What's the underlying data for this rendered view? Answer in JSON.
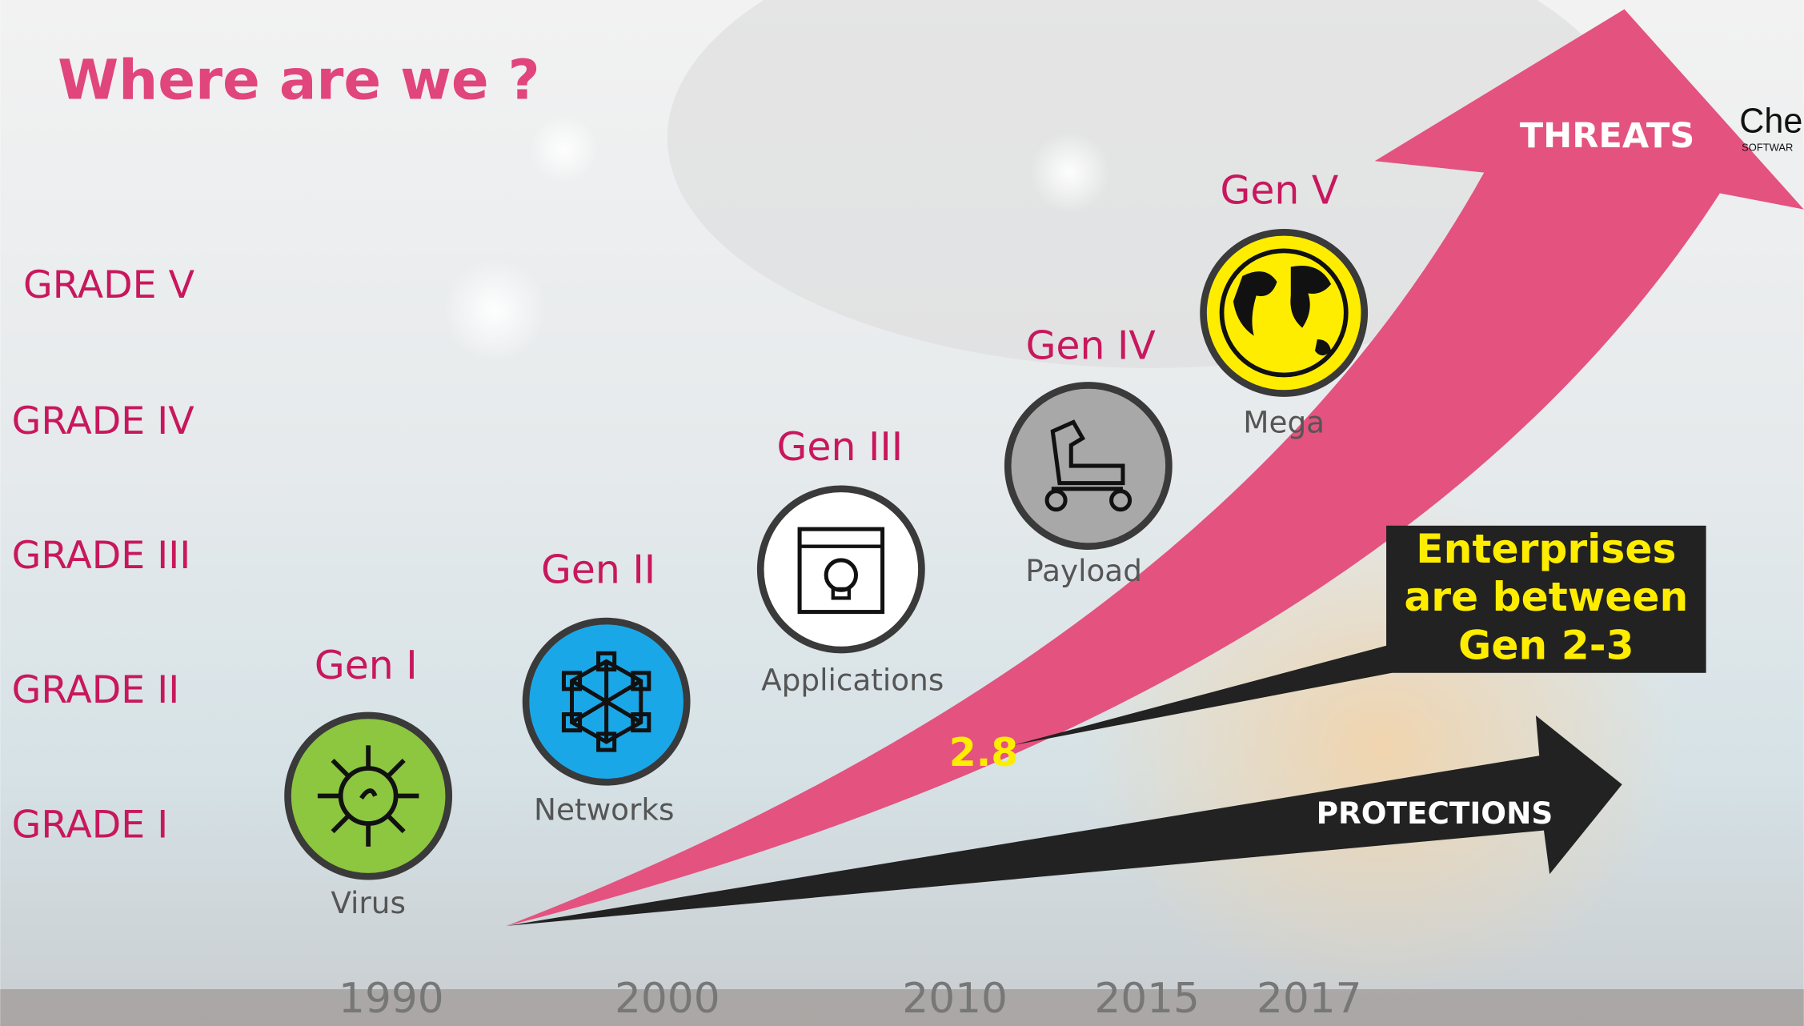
{
  "title": "Where are we ?",
  "threats_label": "THREATS",
  "protections_label": "PROTECTIONS",
  "marker_value": "2.8",
  "callout": {
    "lines": [
      "Enterprises",
      "are between",
      "Gen 2-3"
    ]
  },
  "logo": {
    "name": "Che",
    "tagline": "SOFTWAR"
  },
  "grades": [
    "GRADE V",
    "GRADE IV",
    "GRADE III",
    "GRADE II",
    "GRADE I"
  ],
  "generations": [
    {
      "label": "Gen I",
      "name": "Virus"
    },
    {
      "label": "Gen II",
      "name": "Networks"
    },
    {
      "label": "Gen III",
      "name": "Applications"
    },
    {
      "label": "Gen IV",
      "name": "Payload"
    },
    {
      "label": "Gen V",
      "name": "Mega"
    }
  ],
  "years": [
    "1990",
    "2000",
    "2010",
    "2015",
    "2017"
  ]
}
